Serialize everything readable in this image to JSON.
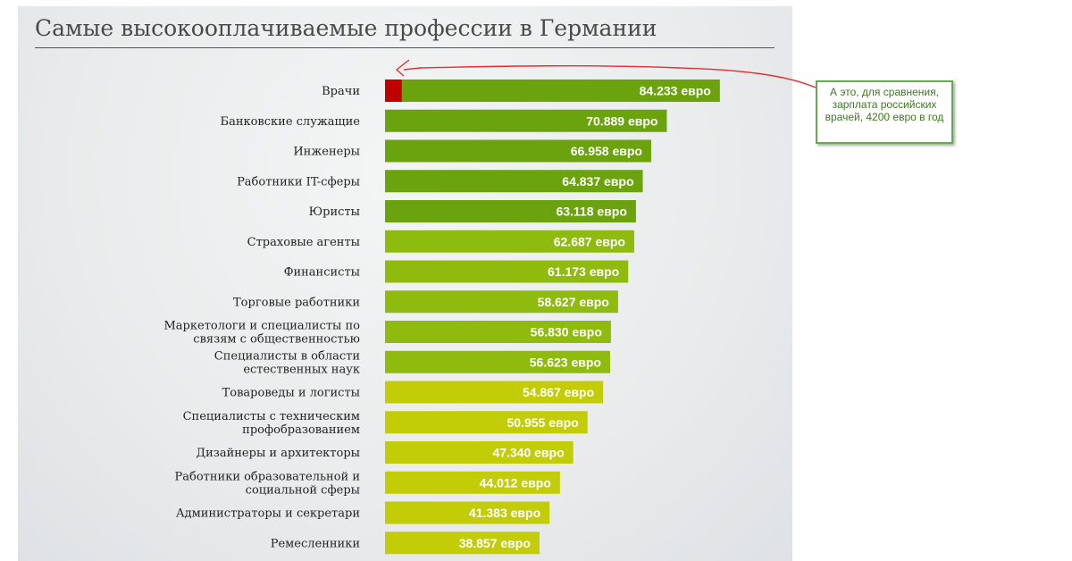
{
  "chart_data": {
    "type": "bar",
    "orientation": "horizontal",
    "title": "Самые высокооплачиваемые профессии в Германии",
    "xlabel": "",
    "ylabel": "",
    "grid": false,
    "unit": "евро",
    "categories": [
      "Врачи",
      "Банковские служащие",
      "Инженеры",
      "Работники IT-сферы",
      "Юристы",
      "Страховые агенты",
      "Финансисты",
      "Торговые работники",
      "Маркетологи и специалисты по связям с общественностью",
      "Специалисты в области естественных наук",
      "Товароведы и логисты",
      "Специалисты с техническим профобразованием",
      "Дизайнеры и архитекторы",
      "Работники образовательной и социальной сферы",
      "Администраторы и секретари",
      "Ремесленники"
    ],
    "category_lines": [
      [
        "Врачи"
      ],
      [
        "Банковские служащие"
      ],
      [
        "Инженеры"
      ],
      [
        "Работники IT-сферы"
      ],
      [
        "Юристы"
      ],
      [
        "Страховые агенты"
      ],
      [
        "Финансисты"
      ],
      [
        "Торговые работники"
      ],
      [
        "Маркетологи и специалисты по",
        "связям с общественностью"
      ],
      [
        "Специалисты в области",
        "естественных наук"
      ],
      [
        "Товароведы и логисты"
      ],
      [
        "Специалисты с техническим",
        "профобразованием"
      ],
      [
        "Дизайнеры и архитекторы"
      ],
      [
        "Работники образовательной и",
        "социальной сферы"
      ],
      [
        "Администраторы и секретари"
      ],
      [
        "Ремесленники"
      ]
    ],
    "values": [
      84233,
      70889,
      66958,
      64837,
      63118,
      62687,
      61173,
      58627,
      56830,
      56623,
      54867,
      50955,
      47340,
      44012,
      41383,
      38857
    ],
    "value_labels": [
      "84.233 евро",
      "70.889 евро",
      "66.958 евро",
      "64.837 евро",
      "63.118 евро",
      "62.687 евро",
      "61.173 евро",
      "58.627 евро",
      "56.830 евро",
      "56.623 евро",
      "54.867 евро",
      "50.955 евро",
      "47.340 евро",
      "44.012 евро",
      "41.383 евро",
      "38.857 евро"
    ],
    "bar_colors": [
      "#6aa30d",
      "#6aa30d",
      "#6aa30d",
      "#6aa30d",
      "#6aa30d",
      "#8fba0e",
      "#8fba0e",
      "#8fba0e",
      "#8fba0e",
      "#8fba0e",
      "#c3cd07",
      "#c3cd07",
      "#c3cd07",
      "#c3cd07",
      "#c3cd07",
      "#c3cd07"
    ],
    "comparison": {
      "category": "Врачи",
      "value": 4200,
      "color": "#c00000",
      "note": "А это, для сравнения, зарплата российских врачей, 4200 евро в год"
    }
  },
  "annotation": {
    "text": "А это, для сравнения, зарплата российских врачей, 4200 евро в год",
    "arrow_color": "#e03030",
    "border_color": "#6aa84f"
  }
}
